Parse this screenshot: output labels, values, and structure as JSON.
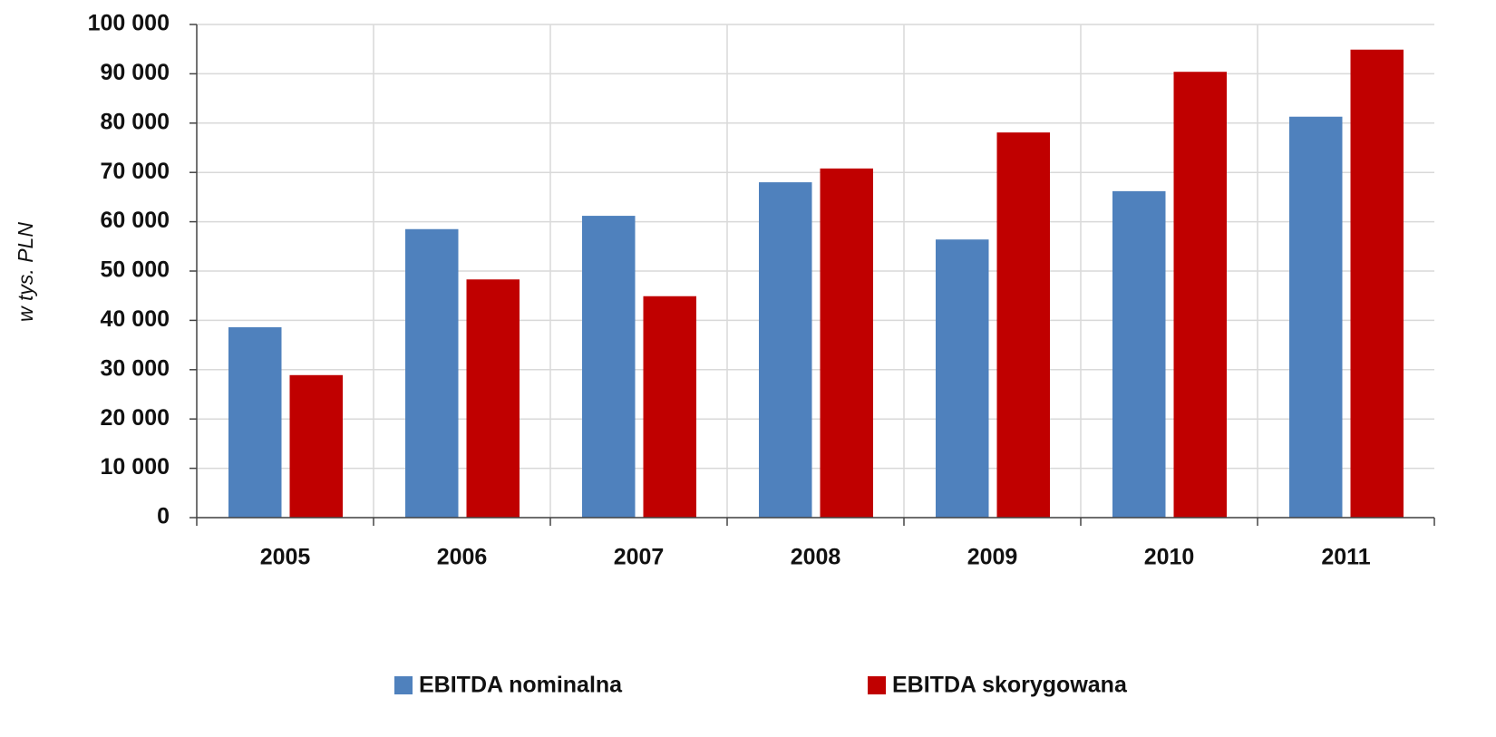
{
  "chart_data": {
    "type": "bar",
    "y_label": "w tys. PLN",
    "categories": [
      "2005",
      "2006",
      "2007",
      "2008",
      "2009",
      "2010",
      "2011"
    ],
    "series": [
      {
        "name": "EBITDA nominalna",
        "color": "#4f81bd",
        "values": [
          38600,
          58500,
          61200,
          68000,
          56400,
          66200,
          81300
        ]
      },
      {
        "name": "EBITDA skorygowana",
        "color": "#c00000",
        "values": [
          28900,
          48300,
          44900,
          70800,
          78100,
          90400,
          94900
        ]
      }
    ],
    "ylim": [
      0,
      100000
    ],
    "yticks": [
      0,
      {
        "value": 10000,
        "label": "10 000"
      },
      {
        "value": 20000,
        "label": "20 000"
      },
      {
        "value": 30000,
        "label": "30 000"
      },
      {
        "value": 40000,
        "label": "40 000"
      },
      {
        "value": 50000,
        "label": "50 000"
      },
      {
        "value": 60000,
        "label": "60 000"
      },
      {
        "value": 70000,
        "label": "70 000"
      },
      {
        "value": 80000,
        "label": "80 000"
      },
      {
        "value": 90000,
        "label": "90 000"
      },
      {
        "value": 100000,
        "label": "100 000"
      }
    ],
    "grid": true
  }
}
